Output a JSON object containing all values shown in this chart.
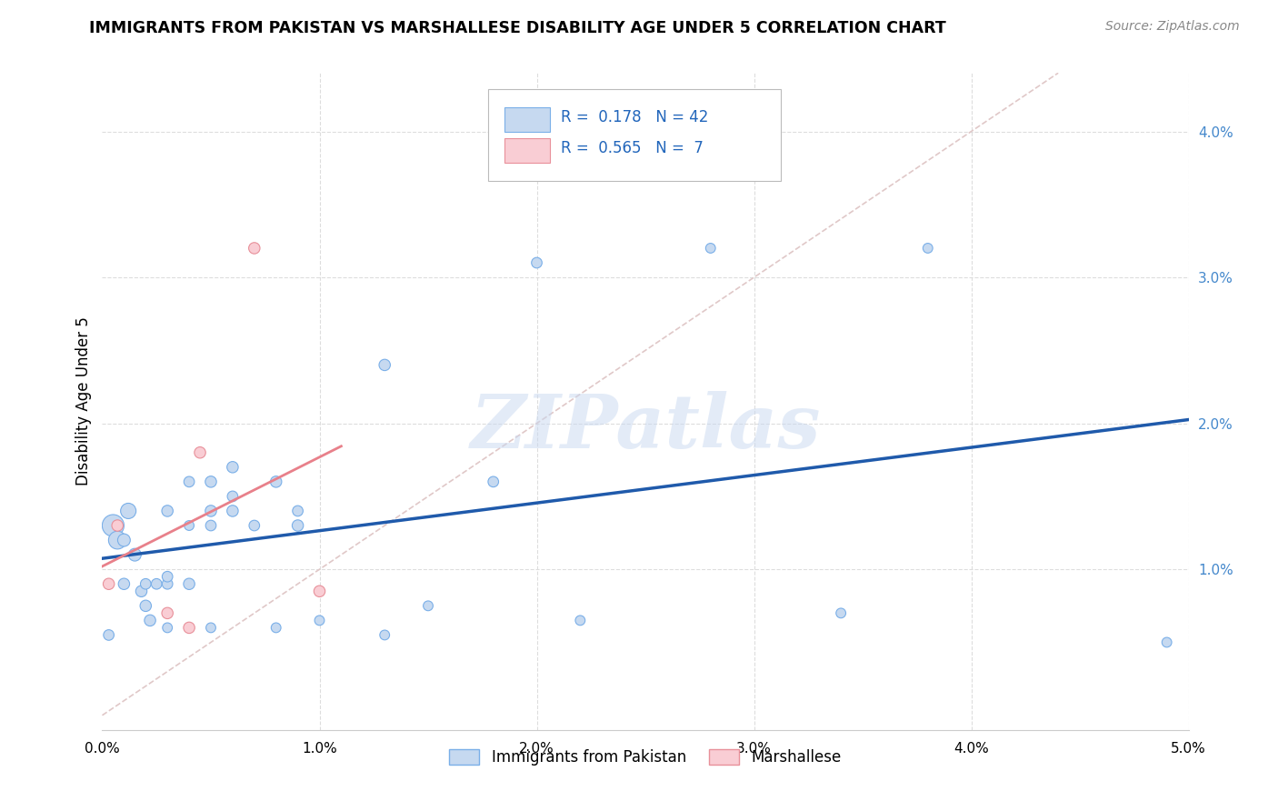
{
  "title": "IMMIGRANTS FROM PAKISTAN VS MARSHALLESE DISABILITY AGE UNDER 5 CORRELATION CHART",
  "source": "Source: ZipAtlas.com",
  "xlim": [
    0.0,
    0.05
  ],
  "ylim": [
    -0.001,
    0.044
  ],
  "pakistan_x": [
    0.0005,
    0.0007,
    0.001,
    0.001,
    0.0012,
    0.0015,
    0.0018,
    0.002,
    0.002,
    0.0022,
    0.0025,
    0.003,
    0.003,
    0.003,
    0.003,
    0.004,
    0.004,
    0.004,
    0.005,
    0.005,
    0.005,
    0.005,
    0.006,
    0.006,
    0.006,
    0.007,
    0.008,
    0.008,
    0.009,
    0.009,
    0.01,
    0.013,
    0.013,
    0.015,
    0.018,
    0.02,
    0.022,
    0.028,
    0.034,
    0.038,
    0.049,
    0.0003
  ],
  "pakistan_y": [
    0.013,
    0.012,
    0.012,
    0.009,
    0.014,
    0.011,
    0.0085,
    0.0075,
    0.009,
    0.0065,
    0.009,
    0.014,
    0.009,
    0.006,
    0.0095,
    0.009,
    0.016,
    0.013,
    0.016,
    0.014,
    0.013,
    0.006,
    0.014,
    0.017,
    0.015,
    0.013,
    0.016,
    0.006,
    0.013,
    0.014,
    0.0065,
    0.024,
    0.0055,
    0.0075,
    0.016,
    0.031,
    0.0065,
    0.032,
    0.007,
    0.032,
    0.005,
    0.0055
  ],
  "pakistan_sizes": [
    300,
    200,
    100,
    80,
    150,
    100,
    80,
    80,
    70,
    80,
    70,
    80,
    70,
    60,
    70,
    80,
    70,
    60,
    80,
    80,
    70,
    60,
    80,
    80,
    70,
    70,
    80,
    60,
    80,
    70,
    60,
    80,
    60,
    60,
    70,
    70,
    60,
    60,
    60,
    60,
    60,
    70
  ],
  "marshallese_x": [
    0.0003,
    0.0007,
    0.003,
    0.004,
    0.0045,
    0.007,
    0.01
  ],
  "marshallese_y": [
    0.009,
    0.013,
    0.007,
    0.006,
    0.018,
    0.032,
    0.0085
  ],
  "marshallese_sizes": [
    80,
    80,
    80,
    80,
    80,
    80,
    80
  ],
  "pakistan_color": "#c6d9f0",
  "pakistan_edge_color": "#7aafe8",
  "marshallese_color": "#f9cdd4",
  "marshallese_edge_color": "#e8909a",
  "trend_pakistan_color": "#1f5aab",
  "trend_marshallese_color": "#e8808a",
  "diagonal_color": "#e0c8c8",
  "R_pakistan": 0.178,
  "N_pakistan": 42,
  "R_marshallese": 0.565,
  "N_marshallese": 7,
  "background_color": "#ffffff",
  "grid_color": "#dddddd",
  "watermark_text": "ZIPatlas",
  "watermark_color": "#c8d8f0",
  "watermark_alpha": 0.5
}
